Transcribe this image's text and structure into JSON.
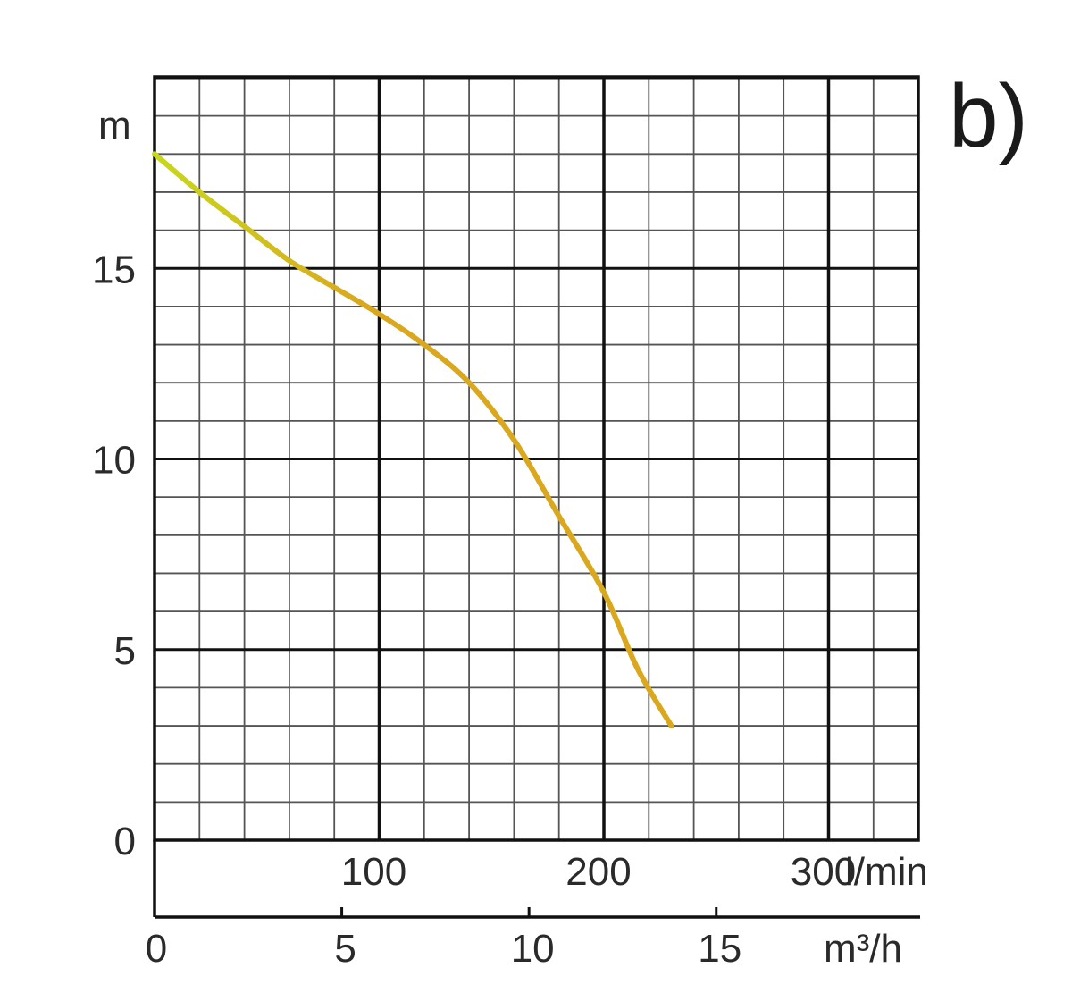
{
  "panel_label": "b)",
  "chart_data": {
    "type": "line",
    "y_unit_label": "m",
    "x_primary_unit_label": "l/min",
    "x_secondary_unit_label": "m³/h",
    "y_ticks": [
      0,
      5,
      10,
      15
    ],
    "y_tick_labels": [
      "0",
      "5",
      "10",
      "15"
    ],
    "ylim": [
      0,
      20
    ],
    "xlim_lmin": [
      0,
      340
    ],
    "x_primary_ticks": [
      100,
      200,
      300
    ],
    "x_primary_tick_labels": [
      "100",
      "200",
      "300"
    ],
    "x_secondary_ticks": [
      0,
      5,
      10,
      15
    ],
    "x_secondary_tick_labels": [
      "0",
      "5",
      "10",
      "15"
    ],
    "grid": true,
    "series": [
      {
        "color": "#d9a81f",
        "color_start": "#c8d81c",
        "points_lmin_m": [
          [
            0,
            18.0
          ],
          [
            20,
            17.0
          ],
          [
            40,
            16.1
          ],
          [
            60,
            15.2
          ],
          [
            80,
            14.5
          ],
          [
            100,
            13.8
          ],
          [
            120,
            13.0
          ],
          [
            140,
            12.0
          ],
          [
            160,
            10.5
          ],
          [
            180,
            8.5
          ],
          [
            200,
            6.5
          ],
          [
            215,
            4.5
          ],
          [
            230,
            3.0
          ]
        ]
      }
    ]
  }
}
